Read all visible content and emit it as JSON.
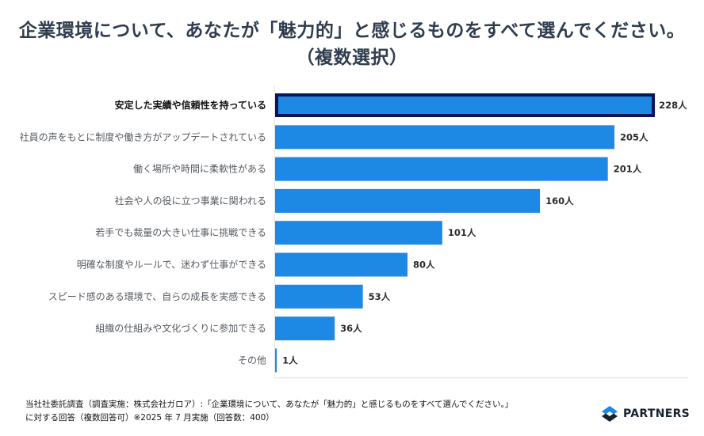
{
  "title": "企業環境について、あなたが「魅力的」と感じるものをすべて選んでください。（複数選択）",
  "chart_data": {
    "type": "bar",
    "orientation": "horizontal",
    "title": "企業環境について、あなたが「魅力的」と感じるものをすべて選んでください。（複数選択）",
    "categories": [
      "安定した実績や信頼性を持っている",
      "社員の声をもとに制度や働き方がアップデートされている",
      "働く場所や時間に柔軟性がある",
      "社会や人の役に立つ事業に関われる",
      "若手でも裁量の大きい仕事に挑戦できる",
      "明確な制度やルールで、迷わず仕事ができる",
      "スピード感のある環境で、自らの成長を実感できる",
      "組織の仕組みや文化づくりに参加できる",
      "その他"
    ],
    "values": [
      228,
      205,
      201,
      160,
      101,
      80,
      53,
      36,
      1
    ],
    "value_labels": [
      "228人",
      "205人",
      "201人",
      "160人",
      "101人",
      "80人",
      "53人",
      "36人",
      "1人"
    ],
    "unit": "人",
    "highlight_index": 0,
    "xlim": [
      0,
      250
    ],
    "xlabel": "",
    "ylabel": "",
    "grid": false,
    "colors": {
      "bar": "#1e88e5",
      "highlight_border": "#0a1457",
      "axis": "#e6e6e6"
    }
  },
  "footer": {
    "line1": "当社社委託調査（調査実施：株式会社ガロア）:「企業環境について、あなたが「魅力的」と感じるものをすべて選んでください。」",
    "line2": "に対する回答（複数回答可）※2025 年 7 月実施（回答数：400）"
  },
  "logo": {
    "text": "PARTNERS",
    "colors": {
      "top": "#1e88e5",
      "bottom": "#16222e"
    }
  }
}
